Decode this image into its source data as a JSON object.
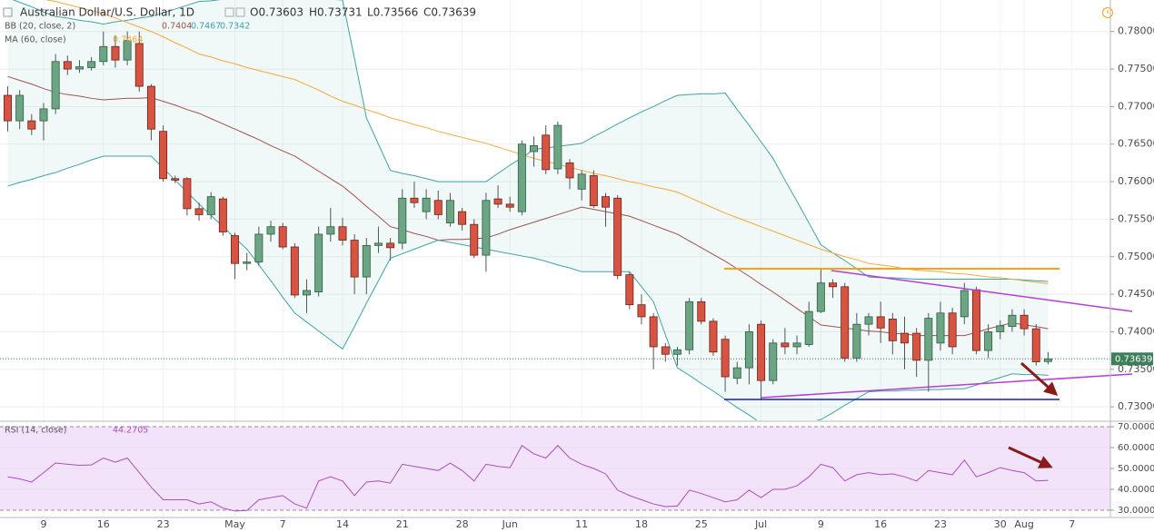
{
  "chart_data": [
    {
      "type": "candlestick",
      "title": "Australian Dollar/U.S. Dollar, 1D",
      "ohlc_labels": [
        "O0.73603",
        "H0.73731",
        "L0.73566",
        "C0.73639"
      ],
      "up_color": "#6ba583",
      "down_color": "#d75442",
      "last_price_label": "0.73639",
      "categories": [
        null,
        null,
        null,
        "9",
        null,
        null,
        null,
        null,
        "16",
        null,
        null,
        null,
        null,
        "23",
        null,
        null,
        null,
        null,
        null,
        "May",
        null,
        null,
        null,
        "7",
        null,
        null,
        null,
        null,
        "14",
        null,
        null,
        null,
        null,
        "21",
        null,
        null,
        null,
        null,
        "28",
        null,
        null,
        null,
        "Jun",
        null,
        null,
        null,
        null,
        null,
        "11",
        null,
        null,
        null,
        null,
        "18",
        null,
        null,
        null,
        null,
        "25",
        null,
        null,
        null,
        null,
        "Jul",
        null,
        null,
        null,
        null,
        "9",
        null,
        null,
        null,
        null,
        "16",
        null,
        null,
        null,
        null,
        "23",
        null,
        null,
        null,
        null,
        "30",
        null,
        "Aug",
        null,
        null,
        null,
        "7"
      ],
      "open": [
        0.7715,
        0.7681,
        0.7681,
        0.7681,
        0.7697,
        0.776,
        0.775,
        0.7752,
        0.776,
        0.778,
        0.7762,
        0.7784,
        0.7727,
        0.7667,
        0.7604,
        0.7604,
        0.7564,
        0.7556,
        0.7577,
        0.7528,
        0.7491,
        0.7493,
        0.753,
        0.754,
        0.7513,
        0.7449,
        0.7453,
        0.753,
        0.754,
        0.7522,
        0.7473,
        0.7515,
        0.7518,
        0.7518,
        0.7578,
        0.756,
        0.7575,
        0.7545,
        0.756,
        0.7543,
        0.7502,
        0.7577,
        0.757,
        0.756,
        0.764,
        0.7662,
        0.7617,
        0.7625,
        0.759,
        0.7608,
        0.758,
        0.7578,
        0.7476,
        0.7436,
        0.742,
        0.738,
        0.737,
        0.7376,
        0.744,
        0.7414,
        0.739,
        0.7338,
        0.7352,
        0.741,
        0.7335,
        0.7385,
        0.738,
        0.7383,
        0.7427,
        0.7465,
        0.746,
        0.7365,
        0.741,
        0.742,
        0.7417,
        0.7398,
        0.7398,
        0.7362,
        0.7385,
        0.7425,
        0.742,
        0.7456,
        0.7375,
        0.74,
        0.7407,
        0.7422,
        0.7404,
        0.73603,
        null,
        null
      ],
      "high": [
        0.7727,
        0.7722,
        0.769,
        0.7705,
        0.777,
        0.7768,
        0.7762,
        0.7766,
        0.78,
        0.7795,
        0.78,
        0.78,
        0.773,
        0.7675,
        0.7608,
        0.7606,
        0.7572,
        0.7586,
        0.758,
        0.7532,
        0.7505,
        0.754,
        0.7548,
        0.7545,
        0.7518,
        0.747,
        0.754,
        0.7565,
        0.7552,
        0.753,
        0.7525,
        0.754,
        0.7525,
        0.759,
        0.76,
        0.759,
        0.7588,
        0.7585,
        0.7565,
        0.755,
        0.7585,
        0.7595,
        0.758,
        0.7655,
        0.766,
        0.7675,
        0.768,
        0.763,
        0.7615,
        0.7615,
        0.7585,
        0.7582,
        0.748,
        0.745,
        0.7425,
        0.7385,
        0.738,
        0.7445,
        0.7445,
        0.7418,
        0.7395,
        0.736,
        0.741,
        0.7415,
        0.739,
        0.7405,
        0.7395,
        0.744,
        0.7485,
        0.747,
        0.7465,
        0.7425,
        0.7425,
        0.744,
        0.7425,
        0.742,
        0.7405,
        0.7425,
        0.744,
        0.7432,
        0.7465,
        0.746,
        0.741,
        0.7415,
        0.743,
        0.743,
        0.741,
        0.73731,
        null,
        null
      ],
      "low": [
        0.7667,
        0.767,
        0.7662,
        0.7655,
        0.769,
        0.7742,
        0.7745,
        0.7748,
        0.7755,
        0.7752,
        0.7755,
        0.772,
        0.7655,
        0.76,
        0.7598,
        0.7555,
        0.7548,
        0.755,
        0.7528,
        0.747,
        0.7482,
        0.7488,
        0.752,
        0.751,
        0.7445,
        0.7425,
        0.7447,
        0.752,
        0.7515,
        0.745,
        0.745,
        0.7505,
        0.7495,
        0.751,
        0.7565,
        0.755,
        0.755,
        0.754,
        0.7535,
        0.7498,
        0.748,
        0.7565,
        0.756,
        0.7555,
        0.762,
        0.761,
        0.761,
        0.759,
        0.7575,
        0.7565,
        0.754,
        0.747,
        0.743,
        0.741,
        0.735,
        0.736,
        0.7355,
        0.737,
        0.741,
        0.7368,
        0.732,
        0.733,
        0.733,
        0.731,
        0.733,
        0.737,
        0.737,
        0.738,
        0.7425,
        0.7445,
        0.736,
        0.736,
        0.7395,
        0.7385,
        0.737,
        0.735,
        0.734,
        0.732,
        0.7375,
        0.737,
        0.741,
        0.737,
        0.7365,
        0.739,
        0.74,
        0.7395,
        0.7355,
        0.73566,
        null,
        null
      ],
      "close": [
        0.7681,
        0.7715,
        0.767,
        0.7697,
        0.776,
        0.775,
        0.7753,
        0.776,
        0.778,
        0.7762,
        0.7788,
        0.7727,
        0.767,
        0.7604,
        0.7602,
        0.7564,
        0.7556,
        0.758,
        0.7533,
        0.7491,
        0.7493,
        0.753,
        0.754,
        0.7513,
        0.7449,
        0.7455,
        0.753,
        0.754,
        0.7522,
        0.7473,
        0.7515,
        0.7518,
        0.7512,
        0.7578,
        0.7572,
        0.7578,
        0.7556,
        0.7575,
        0.7543,
        0.7502,
        0.7575,
        0.757,
        0.7566,
        0.765,
        0.7648,
        0.7616,
        0.7675,
        0.7605,
        0.761,
        0.7568,
        0.7566,
        0.7475,
        0.7436,
        0.742,
        0.738,
        0.737,
        0.7376,
        0.744,
        0.7414,
        0.7373,
        0.734,
        0.7352,
        0.74,
        0.7335,
        0.7385,
        0.738,
        0.7385,
        0.7427,
        0.7465,
        0.746,
        0.7365,
        0.741,
        0.742,
        0.7405,
        0.7388,
        0.7385,
        0.7362,
        0.7418,
        0.7425,
        0.738,
        0.7455,
        0.7375,
        0.74,
        0.7408,
        0.7422,
        0.7404,
        0.736,
        0.73639,
        null,
        null
      ],
      "series": [
        {
          "name": "BB (20, close, 2)",
          "color": "#a0524d",
          "value_label": "0.7404",
          "values": [
            0.774,
            0.7735,
            0.773,
            0.7724,
            0.7719,
            0.7716,
            0.7714,
            0.7711,
            0.7709,
            0.771,
            0.7711,
            0.7711,
            0.7712,
            0.7707,
            0.7702,
            0.7696,
            0.7691,
            0.7684,
            0.7677,
            0.767,
            0.7663,
            0.7656,
            0.7648,
            0.7641,
            0.7634,
            0.7624,
            0.7614,
            0.7604,
            0.7594,
            0.7581,
            0.7567,
            0.7554,
            0.754,
            0.7536,
            0.7531,
            0.7527,
            0.7522,
            0.7523,
            0.7523,
            0.7524,
            0.7525,
            0.753,
            0.7536,
            0.7541,
            0.7546,
            0.7551,
            0.7556,
            0.7561,
            0.7566,
            0.7563,
            0.756,
            0.7557,
            0.7554,
            0.7548,
            0.7542,
            0.7536,
            0.753,
            0.7521,
            0.7512,
            0.7503,
            0.7494,
            0.7484,
            0.7474,
            0.7463,
            0.7453,
            0.7442,
            0.7431,
            0.742,
            0.7409,
            0.7407,
            0.7405,
            0.7403,
            0.7401,
            0.74,
            0.7398,
            0.7397,
            0.7395,
            0.7395,
            0.7395,
            0.7395,
            0.7395,
            0.7399,
            0.7404,
            0.7408,
            0.7412,
            0.7409,
            0.7407,
            0.7404,
            null,
            null
          ]
        },
        {
          "color": "#3ea3a6",
          "value_label": "0.7467",
          "values": [
            0.7845,
            0.7839,
            0.7833,
            0.7826,
            0.782,
            0.7818,
            0.7815,
            0.7813,
            0.781,
            0.7813,
            0.7815,
            0.7818,
            0.782,
            0.7825,
            0.783,
            0.7835,
            0.784,
            0.7841,
            0.7843,
            0.7844,
            0.7845,
            0.7845,
            0.7845,
            0.7845,
            0.7845,
            0.7844,
            0.7844,
            0.7843,
            0.7842,
            0.7764,
            0.7685,
            0.765,
            0.7615,
            0.7611,
            0.7608,
            0.7604,
            0.76,
            0.76,
            0.76,
            0.76,
            0.76,
            0.7611,
            0.7622,
            0.7632,
            0.7643,
            0.7645,
            0.7647,
            0.7649,
            0.7651,
            0.766,
            0.7668,
            0.7677,
            0.7685,
            0.7693,
            0.77,
            0.7708,
            0.7715,
            0.7716,
            0.7717,
            0.7717,
            0.7718,
            0.7696,
            0.7675,
            0.7653,
            0.7631,
            0.7602,
            0.7574,
            0.7545,
            0.7516,
            0.7505,
            0.7495,
            0.7484,
            0.7473,
            0.7472,
            0.7472,
            0.7471,
            0.747,
            0.747,
            0.747,
            0.747,
            0.747,
            0.747,
            0.747,
            0.747,
            0.747,
            0.7469,
            0.7468,
            0.7467,
            null,
            null
          ]
        },
        {
          "color": "#3ea3a6",
          "value_label": "0.7342",
          "values": [
            0.7594,
            0.7599,
            0.7603,
            0.7608,
            0.7612,
            0.7618,
            0.7623,
            0.7629,
            0.7634,
            0.7634,
            0.7634,
            0.7634,
            0.7634,
            0.7618,
            0.7602,
            0.7586,
            0.757,
            0.7555,
            0.754,
            0.7525,
            0.751,
            0.7489,
            0.7468,
            0.7446,
            0.7425,
            0.7413,
            0.7401,
            0.7389,
            0.7377,
            0.7407,
            0.7438,
            0.7468,
            0.7498,
            0.7504,
            0.751,
            0.7516,
            0.7522,
            0.7519,
            0.7516,
            0.7513,
            0.751,
            0.7507,
            0.7504,
            0.7501,
            0.7498,
            0.7494,
            0.7489,
            0.7485,
            0.748,
            0.748,
            0.748,
            0.748,
            0.748,
            0.746,
            0.744,
            0.7396,
            0.7352,
            0.7342,
            0.7331,
            0.7321,
            0.731,
            0.7299,
            0.7289,
            0.7278,
            0.7267,
            0.7271,
            0.7275,
            0.7279,
            0.7283,
            0.7292,
            0.7302,
            0.7311,
            0.732,
            0.7321,
            0.7321,
            0.7322,
            0.7322,
            0.7323,
            0.7323,
            0.7324,
            0.7324,
            0.7329,
            0.7334,
            0.7339,
            0.7344,
            0.7343,
            0.7343,
            0.7342,
            null,
            null
          ]
        },
        {
          "name": "MA (60, close)",
          "color": "#f4a93b",
          "value_label": "0.7464",
          "values": [
            0.785,
            0.7848,
            0.7845,
            0.7843,
            0.784,
            0.7836,
            0.7832,
            0.7828,
            0.7824,
            0.7818,
            0.7812,
            0.7806,
            0.78,
            0.7793,
            0.7785,
            0.7778,
            0.777,
            0.7766,
            0.7761,
            0.7757,
            0.7752,
            0.7748,
            0.7744,
            0.774,
            0.7736,
            0.7729,
            0.7722,
            0.7714,
            0.7707,
            0.7702,
            0.7696,
            0.7691,
            0.7685,
            0.7681,
            0.7676,
            0.7672,
            0.7667,
            0.7663,
            0.7659,
            0.7655,
            0.7651,
            0.7646,
            0.7641,
            0.7636,
            0.7631,
            0.7627,
            0.7623,
            0.7619,
            0.7615,
            0.7611,
            0.7608,
            0.7604,
            0.76,
            0.7597,
            0.7593,
            0.759,
            0.7586,
            0.7579,
            0.7572,
            0.7565,
            0.7558,
            0.7552,
            0.7546,
            0.754,
            0.7534,
            0.7528,
            0.7522,
            0.7516,
            0.751,
            0.7505,
            0.75,
            0.7496,
            0.7491,
            0.7489,
            0.7487,
            0.7484,
            0.7482,
            0.7481,
            0.748,
            0.7478,
            0.7477,
            0.7475,
            0.7473,
            0.7472,
            0.747,
            0.7468,
            0.7466,
            0.7464,
            null,
            null
          ]
        }
      ],
      "ylim": [
        0.7282,
        0.7842
      ],
      "yticks": [
        {
          "value": 0.73,
          "label": "0.73000"
        },
        {
          "value": 0.735,
          "label": "0.73500"
        },
        {
          "value": 0.74,
          "label": "0.74000"
        },
        {
          "value": 0.745,
          "label": "0.74500"
        },
        {
          "value": 0.75,
          "label": "0.75000"
        },
        {
          "value": 0.755,
          "label": "0.75500"
        },
        {
          "value": 0.76,
          "label": "0.76000"
        },
        {
          "value": 0.765,
          "label": "0.76500"
        },
        {
          "value": 0.77,
          "label": "0.77000"
        },
        {
          "value": 0.775,
          "label": "0.77500"
        },
        {
          "value": 0.78,
          "label": "0.78000"
        }
      ],
      "grid": true
    },
    {
      "type": "line",
      "series": [
        {
          "name": "RSI (14, close)",
          "color": "#a94fb9",
          "value_label": "44.2705",
          "values": [
            46,
            45,
            43.5,
            48,
            52.6,
            52,
            51.5,
            51.7,
            55,
            53,
            55,
            48,
            41,
            35,
            35,
            35,
            33,
            34,
            31,
            29.6,
            29.8,
            35,
            36,
            37,
            33,
            31,
            44,
            46,
            44,
            37,
            43.5,
            44,
            43,
            52,
            51,
            50,
            49,
            52.6,
            49,
            44,
            52,
            51,
            50.4,
            61,
            57,
            55,
            61,
            55,
            52,
            50,
            47.4,
            39.6,
            37,
            35,
            33,
            31.7,
            32,
            39.6,
            38,
            36,
            34,
            35,
            39.6,
            36,
            40,
            40,
            41.7,
            46,
            52,
            50.4,
            44,
            47,
            48,
            47,
            47.4,
            46,
            44,
            49,
            48,
            47,
            54,
            46,
            48,
            50.4,
            49,
            48,
            44,
            44.2705,
            null,
            null
          ]
        }
      ],
      "band_color": "#f3e3fa",
      "ylim": [
        26.5,
        72.2
      ],
      "yticks": [
        {
          "value": 30,
          "label": "30.0000"
        },
        {
          "value": 40,
          "label": "40.0000"
        },
        {
          "value": 50,
          "label": "50.0000"
        },
        {
          "value": 60,
          "label": "60.0000"
        },
        {
          "value": 70,
          "label": "70.0000"
        }
      ]
    }
  ]
}
